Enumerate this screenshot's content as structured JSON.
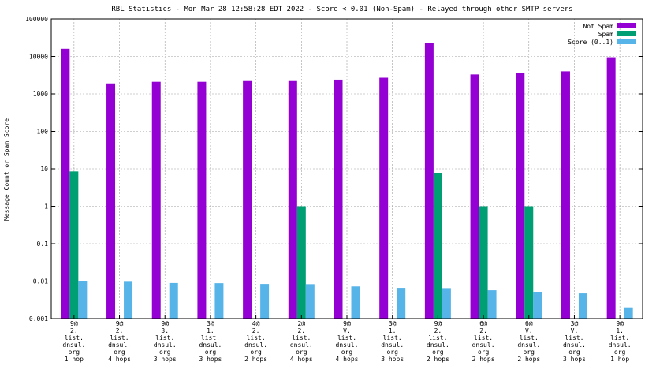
{
  "chart_data": {
    "type": "bar",
    "title": "RBL Statistics - Mon Mar 28 12:58:28 EDT 2022 - Score < 0.01 (Non-Spam) - Relayed through other SMTP servers",
    "ylabel": "Message Count or Spam Score",
    "xlabel": "",
    "yscale": "log",
    "ylim": [
      0.001,
      100000
    ],
    "yticks": [
      "100000",
      "10000",
      "1000",
      "100",
      "10",
      "1",
      "0.1",
      "0.01",
      "0.001"
    ],
    "ytick_values": [
      100000,
      10000,
      1000,
      100,
      10,
      1,
      0.1,
      0.01,
      0.001
    ],
    "grid": true,
    "legend_position": "top-right",
    "categories": [
      [
        "9@",
        "2.",
        "list.",
        "dnsul.",
        "org",
        "1 hop"
      ],
      [
        "9@",
        "2.",
        "list.",
        "dnsul.",
        "org",
        "4 hops"
      ],
      [
        "9@",
        "3.",
        "list.",
        "dnsul.",
        "org",
        "3 hops"
      ],
      [
        "3@",
        "1.",
        "list.",
        "dnsul.",
        "org",
        "3 hops"
      ],
      [
        "4@",
        "2.",
        "list.",
        "dnsul.",
        "org",
        "2 hops"
      ],
      [
        "2@",
        "2.",
        "list.",
        "dnsul.",
        "org",
        "4 hops"
      ],
      [
        "9@",
        "V.",
        "list.",
        "dnsul.",
        "org",
        "4 hops"
      ],
      [
        "3@",
        "1.",
        "list.",
        "dnsul.",
        "org",
        "3 hops"
      ],
      [
        "9@",
        "2.",
        "list.",
        "dnsul.",
        "org",
        "2 hops"
      ],
      [
        "6@",
        "2.",
        "list.",
        "dnsul.",
        "org",
        "2 hops"
      ],
      [
        "6@",
        "V.",
        "list.",
        "dnsul.",
        "org",
        "2 hops"
      ],
      [
        "3@",
        "V.",
        "list.",
        "dnsul.",
        "org",
        "3 hops"
      ],
      [
        "9@",
        "1.",
        "list.",
        "dnsul.",
        "org",
        "1 hop"
      ]
    ],
    "series": [
      {
        "name": "Not Spam",
        "color": "#9400d3",
        "values": [
          16000,
          1900,
          2100,
          2100,
          2200,
          2200,
          2400,
          2700,
          23000,
          3300,
          3600,
          4000,
          9500
        ]
      },
      {
        "name": "Spam",
        "color": "#009e73",
        "values": [
          8.5,
          null,
          null,
          null,
          null,
          1,
          null,
          null,
          7.8,
          1,
          1,
          null,
          null
        ]
      },
      {
        "name": "Score (0..1)",
        "color": "#56b4e9",
        "values": [
          0.0098,
          0.0096,
          0.0089,
          0.0088,
          0.0084,
          0.0083,
          0.0072,
          0.0066,
          0.0065,
          0.0057,
          0.0052,
          0.0047,
          0.002
        ]
      }
    ]
  }
}
